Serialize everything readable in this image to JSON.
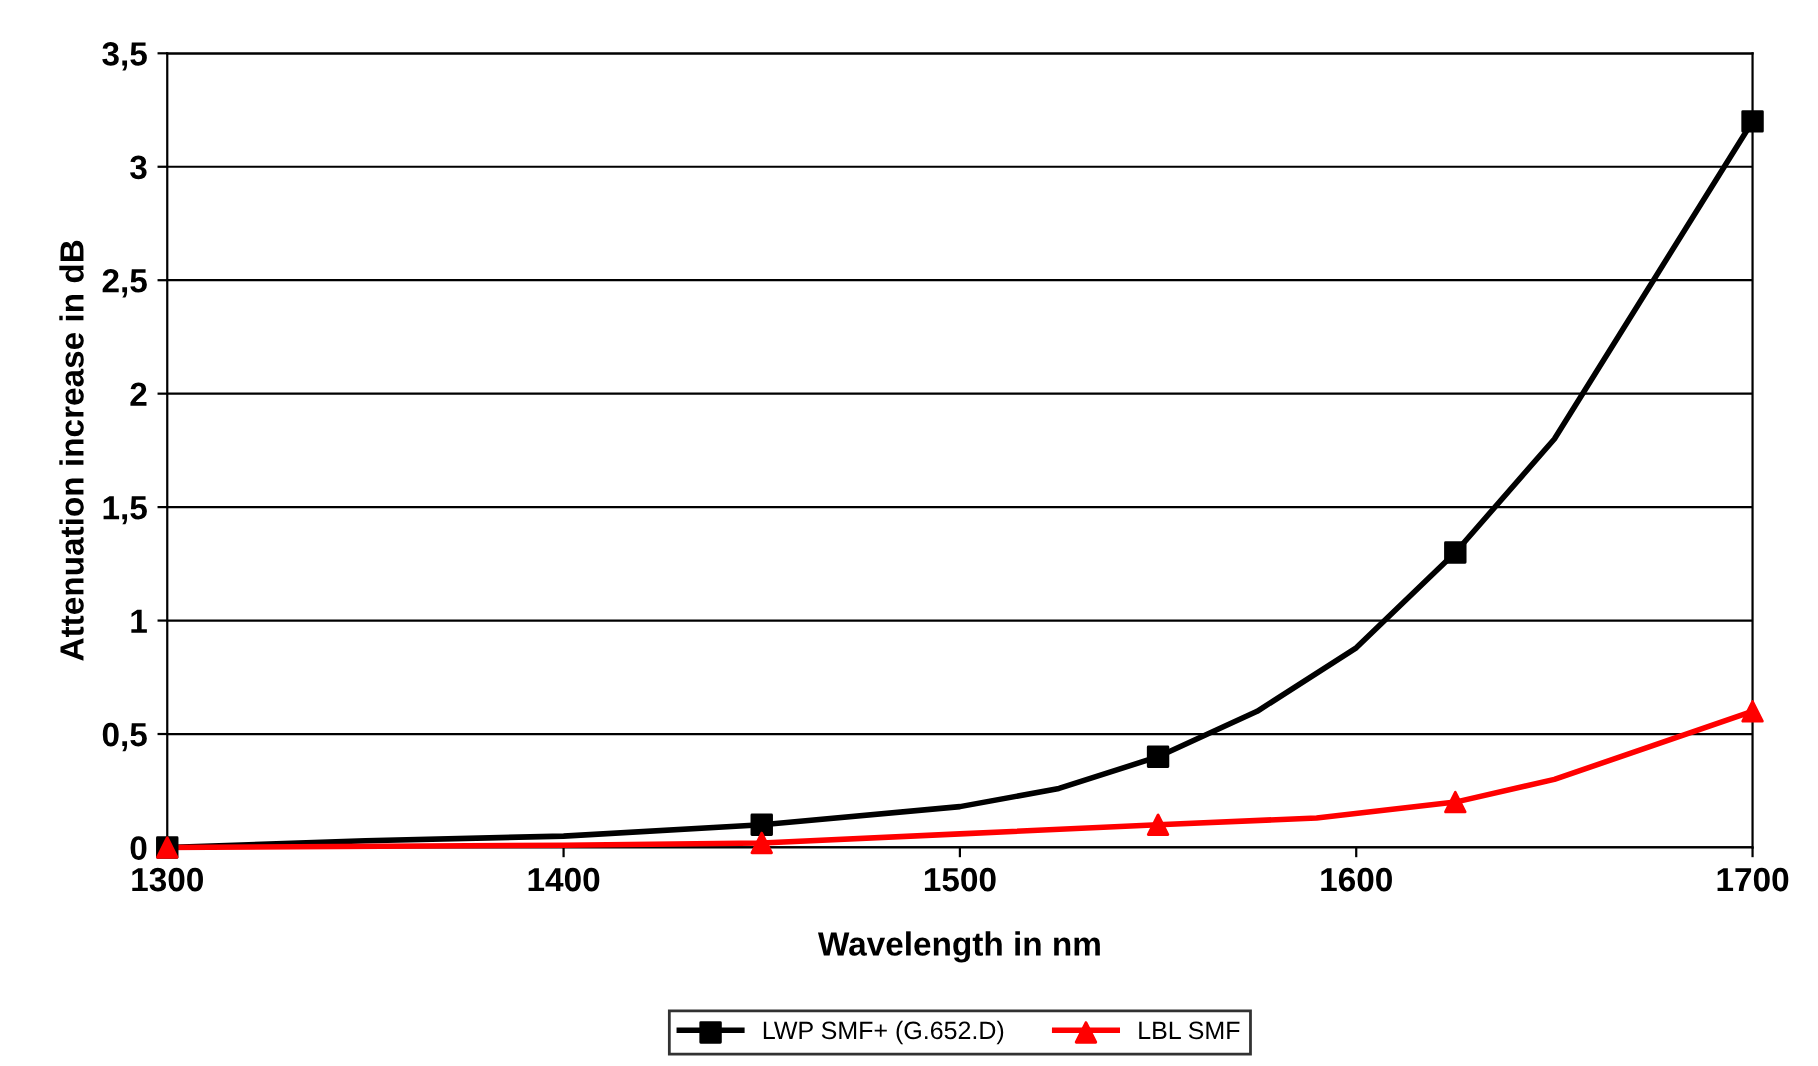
{
  "chart_data": {
    "type": "line",
    "xlabel": "Wavelength in nm",
    "ylabel": "Attenuation increase in dB",
    "series": [
      {
        "color": "#000000",
        "marker": "none",
        "x": [
          1300,
          1350,
          1400,
          1450,
          1500,
          1525,
          1550,
          1575,
          1600,
          1625,
          1650,
          1675,
          1700
        ],
        "values": [
          0,
          0.03,
          0.05,
          0.1,
          0.18,
          0.26,
          0.4,
          0.6,
          0.88,
          1.3,
          1.8,
          2.5,
          3.2
        ]
      },
      {
        "type": "scatter",
        "name": "LWP SMF+ (G.652.D)",
        "color": "#000000",
        "marker": "square",
        "x": [
          1300,
          1450,
          1550,
          1625,
          1700
        ],
        "values": [
          0,
          0.1,
          0.4,
          1.3,
          3.2
        ]
      },
      {
        "color": "#ff0000",
        "marker": "none",
        "x": [
          1300,
          1400,
          1450,
          1500,
          1550,
          1590,
          1625,
          1650,
          1675,
          1700
        ],
        "values": [
          0,
          0.01,
          0.02,
          0.06,
          0.1,
          0.13,
          0.2,
          0.3,
          0.45,
          0.6
        ]
      },
      {
        "type": "scatter",
        "name": "LBL SMF",
        "color": "#ff0000",
        "marker": "triangle",
        "x": [
          1300,
          1450,
          1550,
          1625,
          1700
        ],
        "values": [
          0,
          0.02,
          0.1,
          0.2,
          0.6
        ]
      }
    ],
    "xlim": [
      1300,
      1700
    ],
    "xticks": [
      1300,
      1400,
      1500,
      1600,
      1700
    ],
    "ylim": [
      0,
      3.5
    ],
    "yticks": [
      0,
      {
        "value": 0.5,
        "label": "0,5"
      },
      1,
      {
        "value": 1.5,
        "label": "1,5"
      },
      2,
      {
        "value": 2.5,
        "label": "2,5"
      },
      3,
      {
        "value": 3.5,
        "label": "3,5"
      }
    ],
    "grid": "y",
    "legend": "bottom",
    "line_style": "solid"
  }
}
